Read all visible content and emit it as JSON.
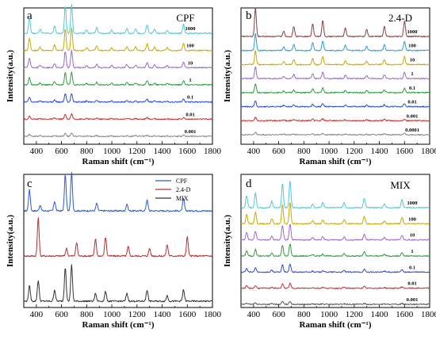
{
  "chart_data": [
    {
      "type": "line",
      "panel": "a",
      "title": "CPF",
      "xlabel": "Raman shift (cm⁻¹)",
      "ylabel": "Intensity(a.u.)",
      "xlim": [
        300,
        1800
      ],
      "xticks": [
        "400",
        "600",
        "800",
        "1000",
        "1200",
        "1400",
        "1600",
        "1800"
      ],
      "peaks": [
        {
          "x": 345,
          "h": 0.55
        },
        {
          "x": 430,
          "h": 0.15
        },
        {
          "x": 545,
          "h": 0.25
        },
        {
          "x": 630,
          "h": 0.95
        },
        {
          "x": 680,
          "h": 1.0
        },
        {
          "x": 800,
          "h": 0.12
        },
        {
          "x": 880,
          "h": 0.2
        },
        {
          "x": 1000,
          "h": 0.12
        },
        {
          "x": 1120,
          "h": 0.18
        },
        {
          "x": 1190,
          "h": 0.15
        },
        {
          "x": 1280,
          "h": 0.3
        },
        {
          "x": 1340,
          "h": 0.15
        },
        {
          "x": 1440,
          "h": 0.12
        },
        {
          "x": 1570,
          "h": 0.32
        }
      ],
      "series": [
        {
          "name": "1000",
          "color": "#4ec8d8",
          "scale": 1.0
        },
        {
          "name": "100",
          "color": "#c8a800",
          "scale": 0.8
        },
        {
          "name": "10",
          "color": "#9a6ad0",
          "scale": 0.6
        },
        {
          "name": "1",
          "color": "#2e9e3e",
          "scale": 0.45
        },
        {
          "name": "0.1",
          "color": "#2a4ad8",
          "scale": 0.3
        },
        {
          "name": "0.01",
          "color": "#c83030",
          "scale": 0.18
        },
        {
          "name": "0.001",
          "color": "#888888",
          "scale": 0.12
        }
      ]
    },
    {
      "type": "line",
      "panel": "b",
      "title": "2.4-D",
      "xlabel": "Raman shift (cm⁻¹)",
      "ylabel": "Intensity(a.u.)",
      "xlim": [
        300,
        1800
      ],
      "xticks": [
        "400",
        "600",
        "800",
        "1000",
        "1200",
        "1400",
        "1600",
        "1800"
      ],
      "peaks": [
        {
          "x": 415,
          "h": 1.0
        },
        {
          "x": 640,
          "h": 0.2
        },
        {
          "x": 720,
          "h": 0.35
        },
        {
          "x": 870,
          "h": 0.45
        },
        {
          "x": 950,
          "h": 0.55
        },
        {
          "x": 1130,
          "h": 0.3
        },
        {
          "x": 1300,
          "h": 0.25
        },
        {
          "x": 1440,
          "h": 0.35
        },
        {
          "x": 1600,
          "h": 0.55
        }
      ],
      "series": [
        {
          "name": "1000",
          "color": "#8a4040",
          "scale": 1.0
        },
        {
          "name": "100",
          "color": "#2a9ad8",
          "scale": 0.6
        },
        {
          "name": "10",
          "color": "#c8a800",
          "scale": 0.5
        },
        {
          "name": "1",
          "color": "#9a6ad0",
          "scale": 0.4
        },
        {
          "name": "0.1",
          "color": "#2e9e3e",
          "scale": 0.3
        },
        {
          "name": "0.01",
          "color": "#2a4ad8",
          "scale": 0.2
        },
        {
          "name": "0.001",
          "color": "#c83030",
          "scale": 0.12
        },
        {
          "name": "0.0001",
          "color": "#888888",
          "scale": 0.08
        }
      ]
    },
    {
      "type": "line",
      "panel": "c",
      "title": "",
      "xlabel": "Raman shift (cm⁻¹)",
      "ylabel": "Intensity(a.u.)",
      "xlim": [
        300,
        1800
      ],
      "xticks": [
        "400",
        "600",
        "800",
        "1000",
        "1200",
        "1400",
        "1600",
        "1800"
      ],
      "legend": [
        "CPF",
        "2.4-D",
        "MIX"
      ],
      "series": [
        {
          "name": "CPF",
          "color": "#2a5ad8",
          "scale": 1.0,
          "peaks": [
            {
              "x": 345,
              "h": 0.55
            },
            {
              "x": 430,
              "h": 0.15
            },
            {
              "x": 545,
              "h": 0.25
            },
            {
              "x": 630,
              "h": 0.95
            },
            {
              "x": 680,
              "h": 1.0
            },
            {
              "x": 880,
              "h": 0.2
            },
            {
              "x": 1120,
              "h": 0.18
            },
            {
              "x": 1280,
              "h": 0.3
            },
            {
              "x": 1570,
              "h": 0.32
            }
          ]
        },
        {
          "name": "2.4-D",
          "color": "#b83030",
          "scale": 1.0,
          "peaks": [
            {
              "x": 415,
              "h": 1.0
            },
            {
              "x": 640,
              "h": 0.2
            },
            {
              "x": 720,
              "h": 0.35
            },
            {
              "x": 870,
              "h": 0.45
            },
            {
              "x": 950,
              "h": 0.5
            },
            {
              "x": 1130,
              "h": 0.25
            },
            {
              "x": 1300,
              "h": 0.2
            },
            {
              "x": 1440,
              "h": 0.3
            },
            {
              "x": 1600,
              "h": 0.5
            }
          ]
        },
        {
          "name": "MIX",
          "color": "#333333",
          "scale": 1.0,
          "peaks": [
            {
              "x": 345,
              "h": 0.4
            },
            {
              "x": 415,
              "h": 0.55
            },
            {
              "x": 545,
              "h": 0.3
            },
            {
              "x": 630,
              "h": 0.9
            },
            {
              "x": 680,
              "h": 0.95
            },
            {
              "x": 870,
              "h": 0.2
            },
            {
              "x": 950,
              "h": 0.25
            },
            {
              "x": 1120,
              "h": 0.2
            },
            {
              "x": 1280,
              "h": 0.3
            },
            {
              "x": 1440,
              "h": 0.15
            },
            {
              "x": 1570,
              "h": 0.3
            }
          ]
        }
      ]
    },
    {
      "type": "line",
      "panel": "d",
      "title": "MIX",
      "xlabel": "Raman shift (cm⁻¹)",
      "ylabel": "Intensity(a.u.)",
      "xlim": [
        300,
        1800
      ],
      "xticks": [
        "400",
        "600",
        "800",
        "1000",
        "1200",
        "1400",
        "1600",
        "1800"
      ],
      "peaks": [
        {
          "x": 345,
          "h": 0.45
        },
        {
          "x": 415,
          "h": 0.55
        },
        {
          "x": 545,
          "h": 0.25
        },
        {
          "x": 630,
          "h": 0.9
        },
        {
          "x": 690,
          "h": 1.0
        },
        {
          "x": 870,
          "h": 0.15
        },
        {
          "x": 950,
          "h": 0.2
        },
        {
          "x": 1120,
          "h": 0.2
        },
        {
          "x": 1280,
          "h": 0.35
        },
        {
          "x": 1440,
          "h": 0.15
        },
        {
          "x": 1580,
          "h": 0.3
        }
      ],
      "series": [
        {
          "name": "1000",
          "color": "#4ec8d8",
          "scale": 1.0
        },
        {
          "name": "100",
          "color": "#c8a800",
          "scale": 0.8
        },
        {
          "name": "10",
          "color": "#9a6ad0",
          "scale": 0.6
        },
        {
          "name": "1",
          "color": "#2e9e3e",
          "scale": 0.45
        },
        {
          "name": "0.1",
          "color": "#2a4ad8",
          "scale": 0.3
        },
        {
          "name": "0.01",
          "color": "#c83030",
          "scale": 0.18
        },
        {
          "name": "0.001",
          "color": "#555555",
          "scale": 0.12
        }
      ]
    }
  ]
}
